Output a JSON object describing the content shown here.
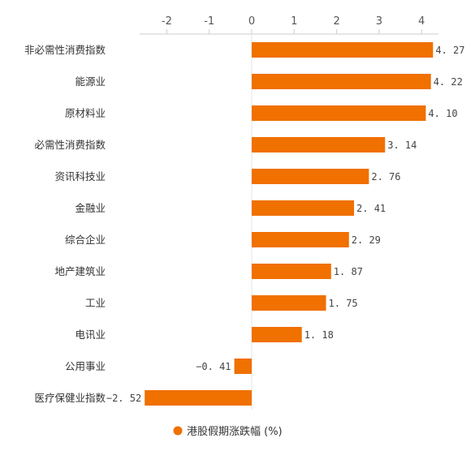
{
  "chart_data": {
    "type": "bar",
    "orientation": "horizontal",
    "categories": [
      "非必需性消费指数",
      "能源业",
      "原材料业",
      "必需性消费指数",
      "资讯科技业",
      "金融业",
      "综合企业",
      "地产建筑业",
      "工业",
      "电讯业",
      "公用事业",
      "医疗保健业指数"
    ],
    "series": [
      {
        "name": "港股假期涨跌幅 (%)",
        "values": [
          4.27,
          4.22,
          4.1,
          3.14,
          2.76,
          2.41,
          2.29,
          1.87,
          1.75,
          1.18,
          -0.41,
          -2.52
        ],
        "labels": [
          "4. 27",
          "4. 22",
          "4. 10",
          "3. 14",
          "2. 76",
          "2. 41",
          "2. 29",
          "1. 87",
          "1. 75",
          "1. 18",
          "−0. 41",
          "−2. 52"
        ]
      }
    ],
    "xlim": [
      -2.6,
      4.4
    ],
    "xticks": [
      -2,
      -1,
      0,
      1,
      2,
      3,
      4
    ],
    "xtick_labels": [
      "-2",
      "-1",
      "0",
      "1",
      "2",
      "3",
      "4"
    ],
    "axis_position": "top",
    "grid": false,
    "legend_position": "bottom-center",
    "bar_color": "#f07000",
    "axis_color": "#cccccc"
  }
}
